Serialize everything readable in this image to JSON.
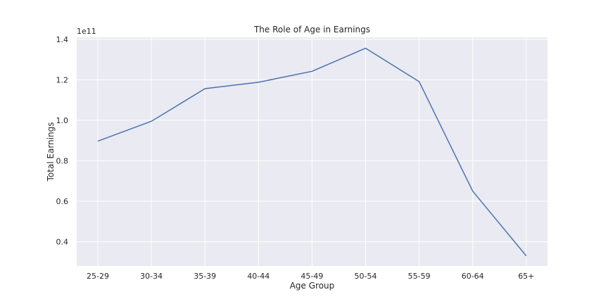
{
  "chart_data": {
    "type": "line",
    "title": "The Role of Age in Earnings",
    "xlabel": "Age Group",
    "ylabel": "Total Earnings",
    "y_offset_label": "1e11",
    "categories": [
      "25-29",
      "30-34",
      "35-39",
      "40-44",
      "45-49",
      "50-54",
      "55-59",
      "60-64",
      "65+"
    ],
    "series": [
      {
        "values": [
          0.897,
          0.995,
          1.156,
          1.188,
          1.242,
          1.356,
          1.191,
          0.65,
          0.33
        ],
        "color": "#4c72b0"
      }
    ],
    "yticks": [
      0.4,
      0.6,
      0.8,
      1.0,
      1.2,
      1.4
    ],
    "ytick_labels": [
      "0.4",
      "0.6",
      "0.8",
      "1.0",
      "1.2",
      "1.4"
    ],
    "ylim": [
      0.28,
      1.41
    ],
    "grid": true,
    "background": "#eaeaf2",
    "grid_color": "#ffffff"
  }
}
